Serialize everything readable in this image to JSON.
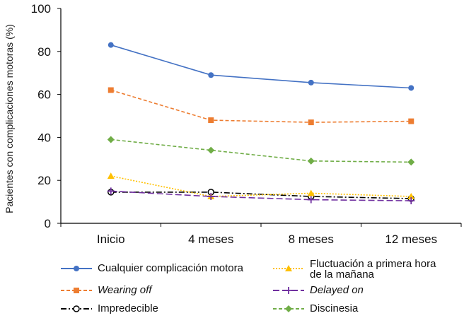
{
  "chart_data": {
    "type": "line",
    "title": "",
    "xlabel": "",
    "ylabel": "Pacientes con complicaciones motoras  (%)",
    "categories": [
      "Inicio",
      "4 meses",
      "8 meses",
      "12 meses"
    ],
    "ylim": [
      0,
      100
    ],
    "yticks": [
      0,
      20,
      40,
      60,
      80,
      100
    ],
    "grid": false,
    "legend_position": "bottom",
    "series": [
      {
        "name": "Cualquier complicación motora",
        "values": [
          83,
          69,
          65.5,
          63
        ],
        "color": "#4472C4",
        "dash": "solid",
        "marker": "circle",
        "italic": false
      },
      {
        "name": "Wearing off",
        "values": [
          62,
          48,
          47,
          47.5
        ],
        "color": "#ED7D31",
        "dash": "dashed",
        "marker": "square",
        "italic": true
      },
      {
        "name": "Impredecible",
        "values": [
          14.5,
          14.5,
          12.5,
          11.5
        ],
        "color": "#000000",
        "dash": "dashdot",
        "marker": "open-circle",
        "italic": false
      },
      {
        "name": "Fluctuación a primera hora de la mañana",
        "values": [
          22,
          12.5,
          14,
          12.5
        ],
        "color": "#FFC000",
        "dash": "dotted",
        "marker": "triangle",
        "italic": false
      },
      {
        "name": "Delayed on",
        "values": [
          15,
          12.5,
          11,
          10.5
        ],
        "color": "#7030A0",
        "dash": "longdash",
        "marker": "plus",
        "italic": true
      },
      {
        "name": "Discinesia",
        "values": [
          39,
          34,
          29,
          28.5
        ],
        "color": "#70AD47",
        "dash": "dashed",
        "marker": "diamond",
        "italic": false
      }
    ]
  },
  "legend": {
    "fluct_line1": "Fluctuación a primera hora",
    "fluct_line2": "de la mañana"
  }
}
